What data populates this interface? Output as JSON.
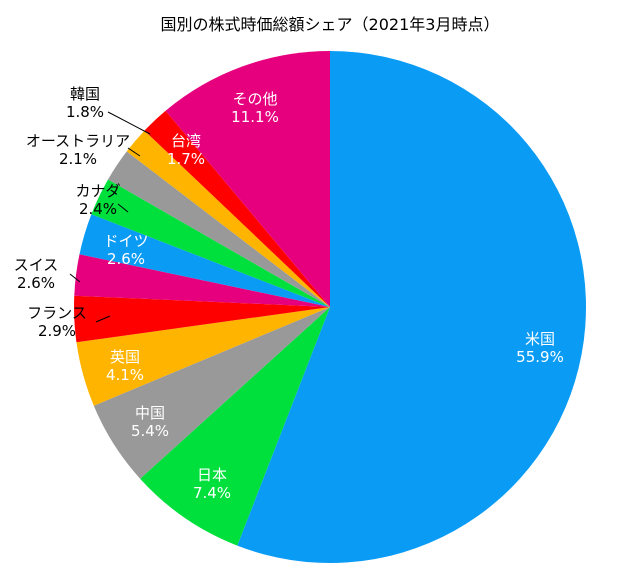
{
  "chart_data": {
    "type": "pie",
    "title": "国別の株式時価総額シェア（2021年3月時点）",
    "start": "top",
    "direction": "clockwise",
    "legend": "none",
    "slices": [
      {
        "name": "米国",
        "value": 55.9,
        "label": "55.9%",
        "color": "#0a9bf5",
        "label_position": "inside"
      },
      {
        "name": "日本",
        "value": 7.4,
        "label": "7.4%",
        "color": "#00e03c",
        "label_position": "inside"
      },
      {
        "name": "中国",
        "value": 5.4,
        "label": "5.4%",
        "color": "#999999",
        "label_position": "inside"
      },
      {
        "name": "英国",
        "value": 4.1,
        "label": "4.1%",
        "color": "#ffb400",
        "label_position": "inside"
      },
      {
        "name": "フランス",
        "value": 2.9,
        "label": "2.9%",
        "color": "#ff0000",
        "label_position": "outside"
      },
      {
        "name": "スイス",
        "value": 2.6,
        "label": "2.6%",
        "color": "#e6007e",
        "label_position": "outside"
      },
      {
        "name": "ドイツ",
        "value": 2.6,
        "label": "2.6%",
        "color": "#0a9bf5",
        "label_position": "inside"
      },
      {
        "name": "カナダ",
        "value": 2.4,
        "label": "2.4%",
        "color": "#00e03c",
        "label_position": "outside"
      },
      {
        "name": "オーストラリア",
        "value": 2.1,
        "label": "2.1%",
        "color": "#999999",
        "label_position": "outside"
      },
      {
        "name": "台湾",
        "value": 1.7,
        "label": "1.7%",
        "color": "#ffb400",
        "label_position": "inside"
      },
      {
        "name": "韓国",
        "value": 1.8,
        "label": "1.8%",
        "color": "#ff0000",
        "label_position": "outside"
      },
      {
        "name": "その他",
        "value": 11.1,
        "label": "11.1%",
        "color": "#e6007e",
        "label_position": "inside"
      }
    ]
  }
}
